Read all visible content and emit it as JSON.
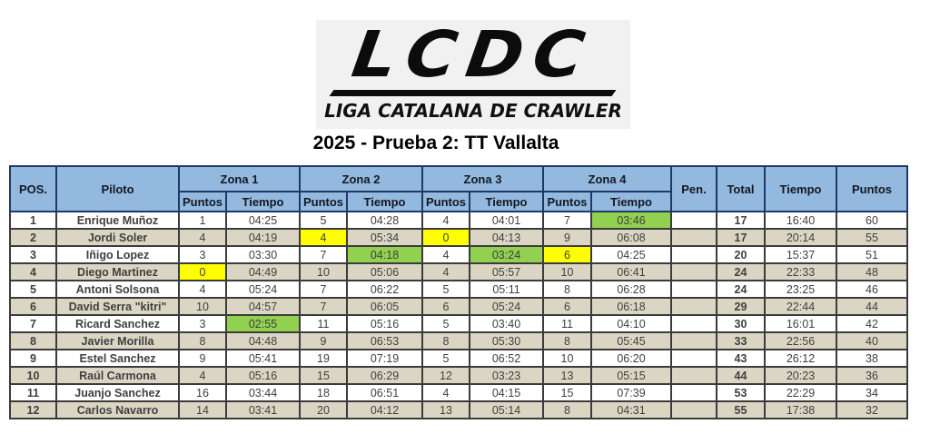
{
  "logo": {
    "acronym": "LCDC",
    "name": "LIGA CATALANA DE CRAWLER"
  },
  "title": "2025 - Prueba 2: TT Vallalta",
  "colors": {
    "header_bg": "#93B9DF",
    "row_alt_bg": "#DBD6C4",
    "highlight_green": "#92D050",
    "highlight_yellow": "#FFFF00",
    "border_header": "#1F3864",
    "border_grid": "#3B3B3B",
    "logo_bg": "#F1F1F1"
  },
  "table": {
    "headers": {
      "pos": "POS.",
      "pilot": "Piloto",
      "zones": [
        "Zona 1",
        "Zona 2",
        "Zona 3",
        "Zona 4"
      ],
      "points": "Puntos",
      "time": "Tiempo",
      "pen": "Pen.",
      "total": "Total",
      "total_time": "Tiempo",
      "total_points": "Puntos"
    },
    "rows": [
      {
        "pos": "1",
        "pilot": "Enrique Muñoz",
        "z1p": "1",
        "z1t": "04:25",
        "z2p": "5",
        "z2t": "04:28",
        "z3p": "4",
        "z3t": "04:01",
        "z4p": "7",
        "z4t": "03:46",
        "pen": "",
        "total": "17",
        "tiempo": "16:40",
        "puntos": "60",
        "highlights": {
          "z4t": "green"
        }
      },
      {
        "pos": "2",
        "pilot": "Jordi Soler",
        "z1p": "4",
        "z1t": "04:19",
        "z2p": "4",
        "z2t": "05:34",
        "z3p": "0",
        "z3t": "04:13",
        "z4p": "9",
        "z4t": "06:08",
        "pen": "",
        "total": "17",
        "tiempo": "20:14",
        "puntos": "55",
        "highlights": {
          "z2p": "yellow",
          "z3p": "yellow"
        }
      },
      {
        "pos": "3",
        "pilot": "Iñigo Lopez",
        "z1p": "3",
        "z1t": "03:30",
        "z2p": "7",
        "z2t": "04:18",
        "z3p": "4",
        "z3t": "03:24",
        "z4p": "6",
        "z4t": "04:25",
        "pen": "",
        "total": "20",
        "tiempo": "15:37",
        "puntos": "51",
        "highlights": {
          "z2t": "green",
          "z3t": "green",
          "z4p": "yellow"
        }
      },
      {
        "pos": "4",
        "pilot": "Diego Martinez",
        "z1p": "0",
        "z1t": "04:49",
        "z2p": "10",
        "z2t": "05:06",
        "z3p": "4",
        "z3t": "05:57",
        "z4p": "10",
        "z4t": "06:41",
        "pen": "",
        "total": "24",
        "tiempo": "22:33",
        "puntos": "48",
        "highlights": {
          "z1p": "yellow"
        }
      },
      {
        "pos": "5",
        "pilot": "Antoni Solsona",
        "z1p": "4",
        "z1t": "05:24",
        "z2p": "7",
        "z2t": "06:22",
        "z3p": "5",
        "z3t": "05:11",
        "z4p": "8",
        "z4t": "06:28",
        "pen": "",
        "total": "24",
        "tiempo": "23:25",
        "puntos": "46",
        "highlights": {}
      },
      {
        "pos": "6",
        "pilot": "David Serra \"kitri\"",
        "z1p": "10",
        "z1t": "04:57",
        "z2p": "7",
        "z2t": "06:05",
        "z3p": "6",
        "z3t": "05:24",
        "z4p": "6",
        "z4t": "06:18",
        "pen": "",
        "total": "29",
        "tiempo": "22:44",
        "puntos": "44",
        "highlights": {}
      },
      {
        "pos": "7",
        "pilot": "Ricard Sanchez",
        "z1p": "3",
        "z1t": "02:55",
        "z2p": "11",
        "z2t": "05:16",
        "z3p": "5",
        "z3t": "03:40",
        "z4p": "11",
        "z4t": "04:10",
        "pen": "",
        "total": "30",
        "tiempo": "16:01",
        "puntos": "42",
        "highlights": {
          "z1t": "green"
        }
      },
      {
        "pos": "8",
        "pilot": "Javier Morilla",
        "z1p": "8",
        "z1t": "04:48",
        "z2p": "9",
        "z2t": "06:53",
        "z3p": "8",
        "z3t": "05:30",
        "z4p": "8",
        "z4t": "05:45",
        "pen": "",
        "total": "33",
        "tiempo": "22:56",
        "puntos": "40",
        "highlights": {}
      },
      {
        "pos": "9",
        "pilot": "Estel Sanchez",
        "z1p": "9",
        "z1t": "05:41",
        "z2p": "19",
        "z2t": "07:19",
        "z3p": "5",
        "z3t": "06:52",
        "z4p": "10",
        "z4t": "06:20",
        "pen": "",
        "total": "43",
        "tiempo": "26:12",
        "puntos": "38",
        "highlights": {}
      },
      {
        "pos": "10",
        "pilot": "Raúl Carmona",
        "z1p": "4",
        "z1t": "05:16",
        "z2p": "15",
        "z2t": "06:29",
        "z3p": "12",
        "z3t": "03:23",
        "z4p": "13",
        "z4t": "05:15",
        "pen": "",
        "total": "44",
        "tiempo": "20:23",
        "puntos": "36",
        "highlights": {}
      },
      {
        "pos": "11",
        "pilot": "Juanjo Sanchez",
        "z1p": "16",
        "z1t": "03:44",
        "z2p": "18",
        "z2t": "06:51",
        "z3p": "4",
        "z3t": "04:15",
        "z4p": "15",
        "z4t": "07:39",
        "pen": "",
        "total": "53",
        "tiempo": "22:29",
        "puntos": "34",
        "highlights": {}
      },
      {
        "pos": "12",
        "pilot": "Carlos Navarro",
        "z1p": "14",
        "z1t": "03:41",
        "z2p": "20",
        "z2t": "04:12",
        "z3p": "13",
        "z3t": "05:14",
        "z4p": "8",
        "z4t": "04:31",
        "pen": "",
        "total": "55",
        "tiempo": "17:38",
        "puntos": "32",
        "highlights": {}
      }
    ]
  }
}
